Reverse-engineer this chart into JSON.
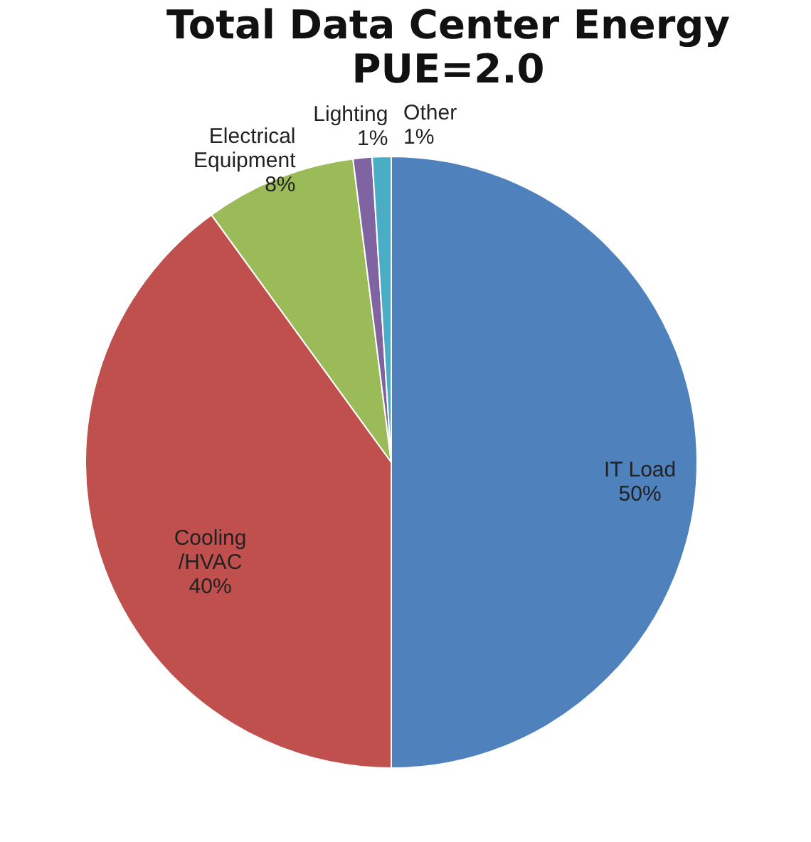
{
  "chart_data": {
    "type": "pie",
    "title": "Total Data Center Energy",
    "subtitle": "PUE=2.0",
    "categories": [
      "IT Load",
      "Cooling\n/HVAC",
      "Electrical\nEquipment",
      "Lighting",
      "Other"
    ],
    "values": [
      50,
      40,
      8,
      1,
      1
    ],
    "colors": [
      "#4f81bd",
      "#c0504d",
      "#9bbb59",
      "#8064a2",
      "#4bacc6"
    ],
    "value_labels": [
      "50%",
      "40%",
      "8%",
      "1%",
      "1%"
    ],
    "legend": false
  }
}
